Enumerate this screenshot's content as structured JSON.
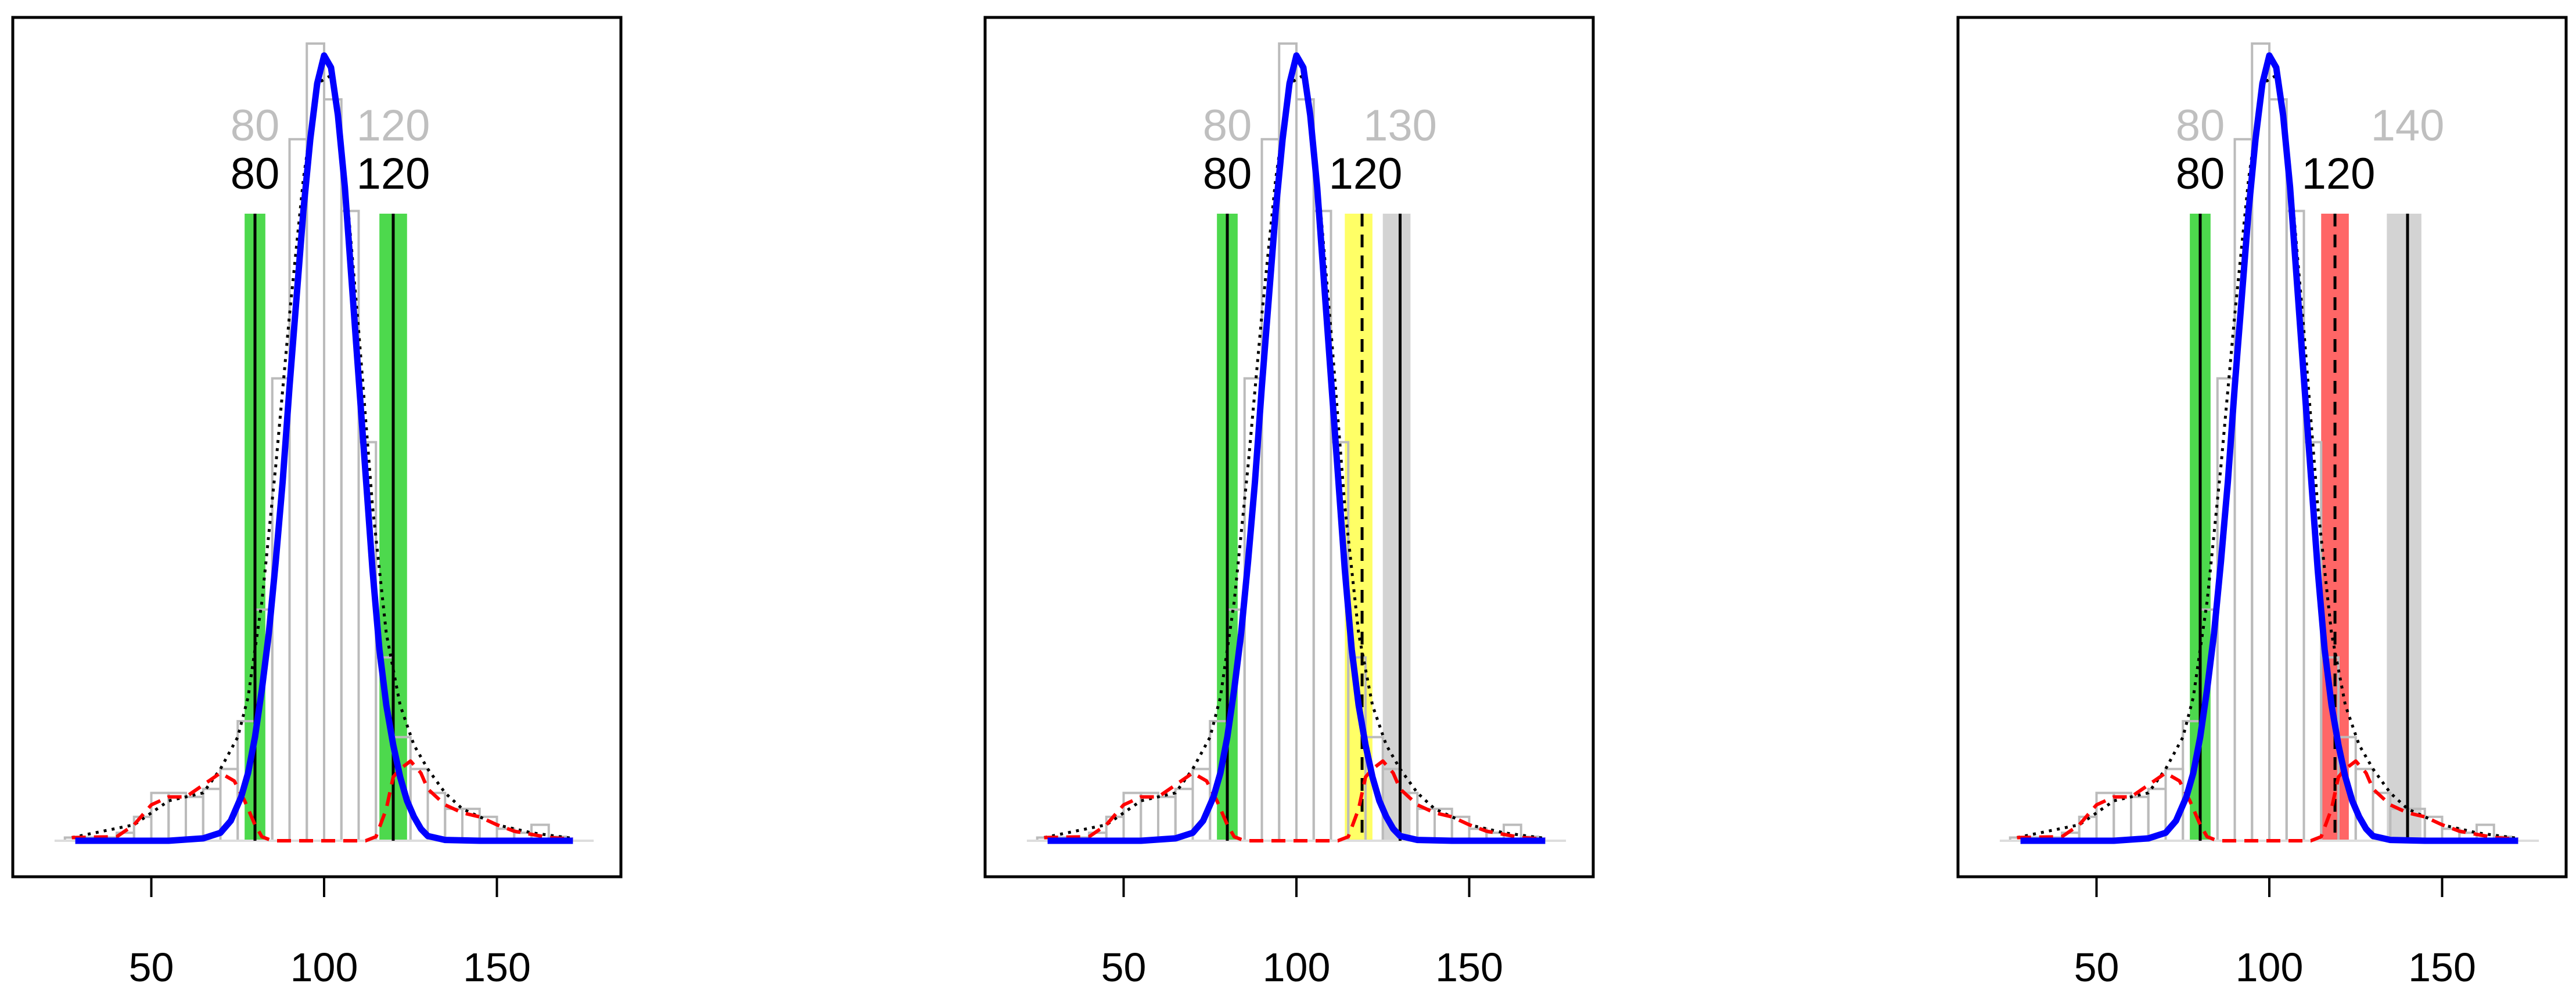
{
  "chart_data": [
    {
      "type": "histogram",
      "xlim": [
        20,
        180
      ],
      "ylim": [
        0,
        1
      ],
      "x_ticks": [
        50,
        100,
        150
      ],
      "bins": [
        {
          "x0": 25,
          "x1": 30,
          "h": 0.004
        },
        {
          "x0": 30,
          "x1": 35,
          "h": 0.004
        },
        {
          "x0": 35,
          "x1": 40,
          "h": 0.004
        },
        {
          "x0": 40,
          "x1": 45,
          "h": 0.01
        },
        {
          "x0": 45,
          "x1": 50,
          "h": 0.03
        },
        {
          "x0": 50,
          "x1": 55,
          "h": 0.06
        },
        {
          "x0": 55,
          "x1": 60,
          "h": 0.06
        },
        {
          "x0": 60,
          "x1": 65,
          "h": 0.055
        },
        {
          "x0": 65,
          "x1": 70,
          "h": 0.065
        },
        {
          "x0": 70,
          "x1": 75,
          "h": 0.09
        },
        {
          "x0": 75,
          "x1": 80,
          "h": 0.15
        },
        {
          "x0": 80,
          "x1": 85,
          "h": 0.29
        },
        {
          "x0": 85,
          "x1": 90,
          "h": 0.58
        },
        {
          "x0": 90,
          "x1": 95,
          "h": 0.88
        },
        {
          "x0": 95,
          "x1": 100,
          "h": 1.0
        },
        {
          "x0": 100,
          "x1": 105,
          "h": 0.93
        },
        {
          "x0": 105,
          "x1": 110,
          "h": 0.79
        },
        {
          "x0": 110,
          "x1": 115,
          "h": 0.5
        },
        {
          "x0": 115,
          "x1": 120,
          "h": 0.23
        },
        {
          "x0": 120,
          "x1": 125,
          "h": 0.13
        },
        {
          "x0": 125,
          "x1": 130,
          "h": 0.09
        },
        {
          "x0": 130,
          "x1": 135,
          "h": 0.06
        },
        {
          "x0": 135,
          "x1": 140,
          "h": 0.04
        },
        {
          "x0": 140,
          "x1": 145,
          "h": 0.04
        },
        {
          "x0": 145,
          "x1": 150,
          "h": 0.03
        },
        {
          "x0": 150,
          "x1": 155,
          "h": 0.015
        },
        {
          "x0": 155,
          "x1": 160,
          "h": 0.01
        },
        {
          "x0": 160,
          "x1": 165,
          "h": 0.02
        },
        {
          "x0": 165,
          "x1": 170,
          "h": 0.005
        }
      ],
      "blue_curve": {
        "x": [
          28,
          40,
          55,
          65,
          70,
          73,
          76,
          78,
          80,
          82,
          84,
          86,
          88,
          90,
          92,
          94,
          96,
          98,
          100,
          102,
          104,
          106,
          108,
          110,
          112,
          114,
          116,
          118,
          120,
          122,
          124,
          126,
          128,
          130,
          135,
          145,
          172
        ],
        "y": [
          0,
          0,
          0,
          0.003,
          0.01,
          0.025,
          0.055,
          0.085,
          0.13,
          0.19,
          0.26,
          0.35,
          0.45,
          0.57,
          0.68,
          0.79,
          0.88,
          0.95,
          0.985,
          0.97,
          0.91,
          0.82,
          0.7,
          0.58,
          0.46,
          0.34,
          0.24,
          0.17,
          0.12,
          0.08,
          0.05,
          0.03,
          0.015,
          0.006,
          0.001,
          0,
          0
        ]
      },
      "red_curve": {
        "x": [
          27,
          40,
          45,
          50,
          55,
          60,
          65,
          70,
          74,
          77,
          80,
          82,
          85,
          100,
          112,
          115,
          118,
          120,
          122,
          125,
          128,
          130,
          135,
          140,
          145,
          150,
          155,
          160,
          165,
          172
        ],
        "y": [
          0.004,
          0.005,
          0.02,
          0.045,
          0.055,
          0.055,
          0.07,
          0.085,
          0.075,
          0.05,
          0.02,
          0.005,
          0,
          0,
          0,
          0.005,
          0.04,
          0.08,
          0.09,
          0.1,
          0.085,
          0.065,
          0.045,
          0.035,
          0.03,
          0.02,
          0.012,
          0.008,
          0.004,
          0.002
        ]
      },
      "black_dotted_curve": {
        "x": [
          27,
          45,
          55,
          65,
          70,
          75,
          78,
          82,
          86,
          90,
          94,
          98,
          102,
          106,
          110,
          114,
          118,
          122,
          126,
          130,
          135,
          140,
          145,
          150,
          160,
          172
        ],
        "y": [
          0.004,
          0.02,
          0.05,
          0.06,
          0.09,
          0.13,
          0.18,
          0.3,
          0.47,
          0.66,
          0.83,
          0.95,
          0.96,
          0.84,
          0.64,
          0.42,
          0.26,
          0.17,
          0.12,
          0.09,
          0.06,
          0.04,
          0.03,
          0.02,
          0.01,
          0.003
        ]
      },
      "top_labels": [
        {
          "x": 80,
          "text": "80"
        },
        {
          "x": 120,
          "text": "120"
        }
      ],
      "bottom_labels": [
        {
          "x": 80,
          "text": "80"
        },
        {
          "x": 120,
          "text": "120"
        }
      ],
      "bands": [
        {
          "center": 80,
          "half_width": 3,
          "color": "#4dd94d"
        },
        {
          "center": 120,
          "half_width": 4,
          "color": "#4dd94d"
        }
      ],
      "lines": [
        {
          "x": 80,
          "style": "solid"
        },
        {
          "x": 120,
          "style": "solid"
        }
      ]
    },
    {
      "type": "histogram",
      "xlim": [
        20,
        180
      ],
      "ylim": [
        0,
        1
      ],
      "x_ticks": [
        50,
        100,
        150
      ],
      "bins": "same_as_panel_1",
      "top_labels": [
        {
          "x": 80,
          "text": "80"
        },
        {
          "x": 130,
          "text": "130"
        }
      ],
      "bottom_labels": [
        {
          "x": 80,
          "text": "80"
        },
        {
          "x": 120,
          "text": "120"
        }
      ],
      "bands": [
        {
          "center": 80,
          "half_width": 3,
          "color": "#4dd94d"
        },
        {
          "center": 118,
          "half_width": 4,
          "color": "#ffff66"
        },
        {
          "center": 129,
          "half_width": 4,
          "color": "#d3d3d3"
        }
      ],
      "lines": [
        {
          "x": 80,
          "style": "solid"
        },
        {
          "x": 119,
          "style": "dashed"
        },
        {
          "x": 130,
          "style": "solid"
        }
      ]
    },
    {
      "type": "histogram",
      "xlim": [
        20,
        180
      ],
      "ylim": [
        0,
        1
      ],
      "x_ticks": [
        50,
        100,
        150
      ],
      "bins": "same_as_panel_1",
      "top_labels": [
        {
          "x": 80,
          "text": "80"
        },
        {
          "x": 140,
          "text": "140"
        }
      ],
      "bottom_labels": [
        {
          "x": 80,
          "text": "80"
        },
        {
          "x": 120,
          "text": "120"
        }
      ],
      "bands": [
        {
          "center": 80,
          "half_width": 3,
          "color": "#4dd94d"
        },
        {
          "center": 119,
          "half_width": 4,
          "color": "#ff6666"
        },
        {
          "center": 139,
          "half_width": 5,
          "color": "#d3d3d3"
        }
      ],
      "lines": [
        {
          "x": 80,
          "style": "solid"
        },
        {
          "x": 119,
          "style": "dashed"
        },
        {
          "x": 140,
          "style": "solid"
        }
      ]
    }
  ],
  "colors": {
    "blue": "#0000ff",
    "red": "#ff0000",
    "black": "#000000",
    "top_label": "#bfbfbf",
    "bottom_label": "#000000",
    "bar_stroke": "#bbbbbb"
  }
}
